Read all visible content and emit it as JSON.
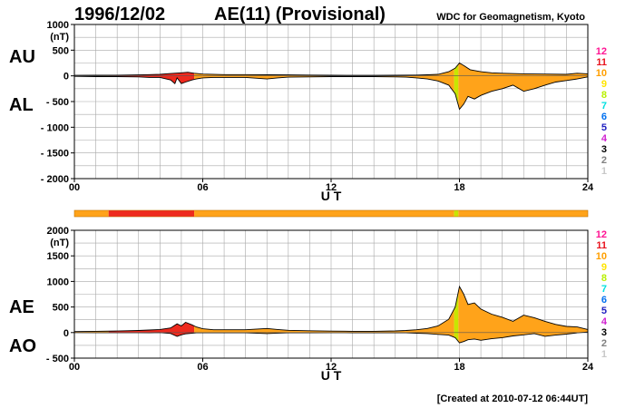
{
  "header": {
    "date": "1996/12/02",
    "title": "AE(11) (Provisional)",
    "source": "WDC for Geomagnetism, Kyoto"
  },
  "footer": {
    "created": "[Created at 2010-07-12 06:44UT]"
  },
  "colors": {
    "fill_orange": "#ffa31a",
    "fill_red": "#ee2a1e",
    "yellow_green": "#c8e600",
    "grid": "#a8a8a8",
    "outline": "#000000"
  },
  "stations_legend": [
    {
      "label": "12",
      "color": "#ff1493"
    },
    {
      "label": "11",
      "color": "#e8141e"
    },
    {
      "label": "10",
      "color": "#ff9f00"
    },
    {
      "label": "9",
      "color": "#ffe400"
    },
    {
      "label": "8",
      "color": "#b8f000"
    },
    {
      "label": "7",
      "color": "#00e0e0"
    },
    {
      "label": "6",
      "color": "#0070f0"
    },
    {
      "label": "5",
      "color": "#2020c0"
    },
    {
      "label": "4",
      "color": "#d020d0"
    },
    {
      "label": "3",
      "color": "#000000"
    },
    {
      "label": "2",
      "color": "#808080"
    },
    {
      "label": "1",
      "color": "#c8c8c8"
    }
  ],
  "station_bar": [
    {
      "from": 0.0,
      "to": 1.6,
      "stations": 10
    },
    {
      "from": 1.6,
      "to": 5.6,
      "stations": 11
    },
    {
      "from": 5.6,
      "to": 17.75,
      "stations": 10
    },
    {
      "from": 17.75,
      "to": 17.95,
      "stations": 8
    },
    {
      "from": 17.95,
      "to": 24.0,
      "stations": 10
    }
  ],
  "chart_data": [
    {
      "type": "area",
      "id": "au-al",
      "series": [
        {
          "name": "AU",
          "points": [
            [
              0,
              10
            ],
            [
              1,
              12
            ],
            [
              2,
              14
            ],
            [
              3,
              18
            ],
            [
              3.5,
              25
            ],
            [
              4,
              30
            ],
            [
              4.5,
              45
            ],
            [
              5,
              60
            ],
            [
              5.3,
              70
            ],
            [
              5.6,
              50
            ],
            [
              6,
              35
            ],
            [
              7,
              25
            ],
            [
              8,
              25
            ],
            [
              9,
              20
            ],
            [
              10,
              18
            ],
            [
              11,
              15
            ],
            [
              12,
              12
            ],
            [
              13,
              10
            ],
            [
              14,
              10
            ],
            [
              15,
              12
            ],
            [
              16,
              15
            ],
            [
              16.5,
              20
            ],
            [
              17,
              30
            ],
            [
              17.5,
              80
            ],
            [
              17.8,
              150
            ],
            [
              18,
              250
            ],
            [
              18.2,
              200
            ],
            [
              18.5,
              120
            ],
            [
              19,
              80
            ],
            [
              19.5,
              60
            ],
            [
              20,
              50
            ],
            [
              21,
              40
            ],
            [
              22,
              35
            ],
            [
              23,
              30
            ],
            [
              23.5,
              50
            ],
            [
              24,
              40
            ]
          ]
        },
        {
          "name": "AL",
          "points": [
            [
              0,
              -10
            ],
            [
              1,
              -15
            ],
            [
              2,
              -15
            ],
            [
              3,
              -20
            ],
            [
              3.5,
              -30
            ],
            [
              4,
              -30
            ],
            [
              4.5,
              -80
            ],
            [
              4.7,
              -150
            ],
            [
              4.8,
              -40
            ],
            [
              5,
              -150
            ],
            [
              5.2,
              -120
            ],
            [
              5.5,
              -80
            ],
            [
              5.7,
              -60
            ],
            [
              6,
              -40
            ],
            [
              6.5,
              -30
            ],
            [
              7,
              -30
            ],
            [
              8,
              -30
            ],
            [
              9,
              -60
            ],
            [
              9.5,
              -40
            ],
            [
              10,
              -25
            ],
            [
              11,
              -20
            ],
            [
              12,
              -15
            ],
            [
              13,
              -15
            ],
            [
              14,
              -15
            ],
            [
              15,
              -20
            ],
            [
              15.5,
              -25
            ],
            [
              16,
              -40
            ],
            [
              16.5,
              -60
            ],
            [
              17,
              -100
            ],
            [
              17.5,
              -180
            ],
            [
              17.8,
              -350
            ],
            [
              18,
              -650
            ],
            [
              18.2,
              -550
            ],
            [
              18.4,
              -400
            ],
            [
              18.7,
              -450
            ],
            [
              19,
              -380
            ],
            [
              19.5,
              -300
            ],
            [
              20,
              -250
            ],
            [
              20.5,
              -180
            ],
            [
              21,
              -300
            ],
            [
              21.5,
              -250
            ],
            [
              22,
              -180
            ],
            [
              22.5,
              -120
            ],
            [
              23,
              -90
            ],
            [
              23.5,
              -60
            ],
            [
              24,
              -20
            ]
          ]
        }
      ],
      "ylim": [
        -2000,
        1000
      ],
      "yticks": [
        "1000",
        "500",
        "0",
        "- 500",
        "- 1000",
        "- 1500",
        "- 2000"
      ],
      "unit": "(nT)",
      "xlim": [
        0,
        24
      ],
      "xticks": [
        "00",
        "06",
        "12",
        "18",
        "24"
      ],
      "xlabel": "U T",
      "side_labels": [
        "AU",
        "AL"
      ],
      "grid": true
    },
    {
      "type": "area",
      "id": "ae-ao",
      "series": [
        {
          "name": "AE",
          "points": [
            [
              0,
              20
            ],
            [
              1,
              25
            ],
            [
              2,
              30
            ],
            [
              3,
              40
            ],
            [
              3.5,
              50
            ],
            [
              4,
              60
            ],
            [
              4.5,
              90
            ],
            [
              4.8,
              170
            ],
            [
              5,
              130
            ],
            [
              5.2,
              200
            ],
            [
              5.5,
              150
            ],
            [
              5.7,
              110
            ],
            [
              6,
              75
            ],
            [
              6.5,
              55
            ],
            [
              7,
              55
            ],
            [
              8,
              55
            ],
            [
              9,
              80
            ],
            [
              9.5,
              60
            ],
            [
              10,
              45
            ],
            [
              11,
              35
            ],
            [
              12,
              28
            ],
            [
              13,
              25
            ],
            [
              14,
              25
            ],
            [
              15,
              32
            ],
            [
              15.5,
              40
            ],
            [
              16,
              55
            ],
            [
              16.5,
              80
            ],
            [
              17,
              130
            ],
            [
              17.5,
              260
            ],
            [
              17.8,
              500
            ],
            [
              18,
              900
            ],
            [
              18.2,
              750
            ],
            [
              18.4,
              550
            ],
            [
              18.7,
              580
            ],
            [
              19,
              460
            ],
            [
              19.5,
              360
            ],
            [
              20,
              300
            ],
            [
              20.5,
              220
            ],
            [
              21,
              340
            ],
            [
              21.5,
              290
            ],
            [
              22,
              220
            ],
            [
              22.5,
              160
            ],
            [
              23,
              120
            ],
            [
              23.5,
              110
            ],
            [
              24,
              60
            ]
          ]
        },
        {
          "name": "AO",
          "points": [
            [
              0,
              0
            ],
            [
              1,
              -2
            ],
            [
              2,
              -1
            ],
            [
              3,
              -1
            ],
            [
              3.5,
              -3
            ],
            [
              4,
              0
            ],
            [
              4.5,
              -18
            ],
            [
              4.8,
              -75
            ],
            [
              5,
              -45
            ],
            [
              5.2,
              -25
            ],
            [
              5.5,
              -15
            ],
            [
              5.7,
              -5
            ],
            [
              6,
              -3
            ],
            [
              6.5,
              -3
            ],
            [
              7,
              -3
            ],
            [
              8,
              -3
            ],
            [
              9,
              -20
            ],
            [
              9.5,
              -10
            ],
            [
              10,
              -4
            ],
            [
              11,
              -3
            ],
            [
              12,
              -2
            ],
            [
              13,
              -3
            ],
            [
              14,
              -3
            ],
            [
              15,
              -4
            ],
            [
              15.5,
              -3
            ],
            [
              16,
              -12
            ],
            [
              16.5,
              -20
            ],
            [
              17,
              -35
            ],
            [
              17.5,
              -50
            ],
            [
              17.8,
              -100
            ],
            [
              18,
              -200
            ],
            [
              18.2,
              -175
            ],
            [
              18.4,
              -140
            ],
            [
              18.7,
              -125
            ],
            [
              19,
              -150
            ],
            [
              19.5,
              -120
            ],
            [
              20,
              -100
            ],
            [
              20.5,
              -65
            ],
            [
              21,
              -45
            ],
            [
              21.5,
              -20
            ],
            [
              22,
              -73
            ],
            [
              22.5,
              -50
            ],
            [
              23,
              -30
            ],
            [
              23.5,
              -5
            ],
            [
              24,
              10
            ]
          ]
        }
      ],
      "ylim": [
        -500,
        2000
      ],
      "yticks": [
        "2000",
        "1500",
        "1000",
        "500",
        "0",
        "- 500"
      ],
      "unit": "(nT)",
      "xlim": [
        0,
        24
      ],
      "xticks": [
        "00",
        "06",
        "12",
        "18",
        "24"
      ],
      "xlabel": "U T",
      "side_labels": [
        "AE",
        "AO"
      ],
      "grid": true
    }
  ]
}
